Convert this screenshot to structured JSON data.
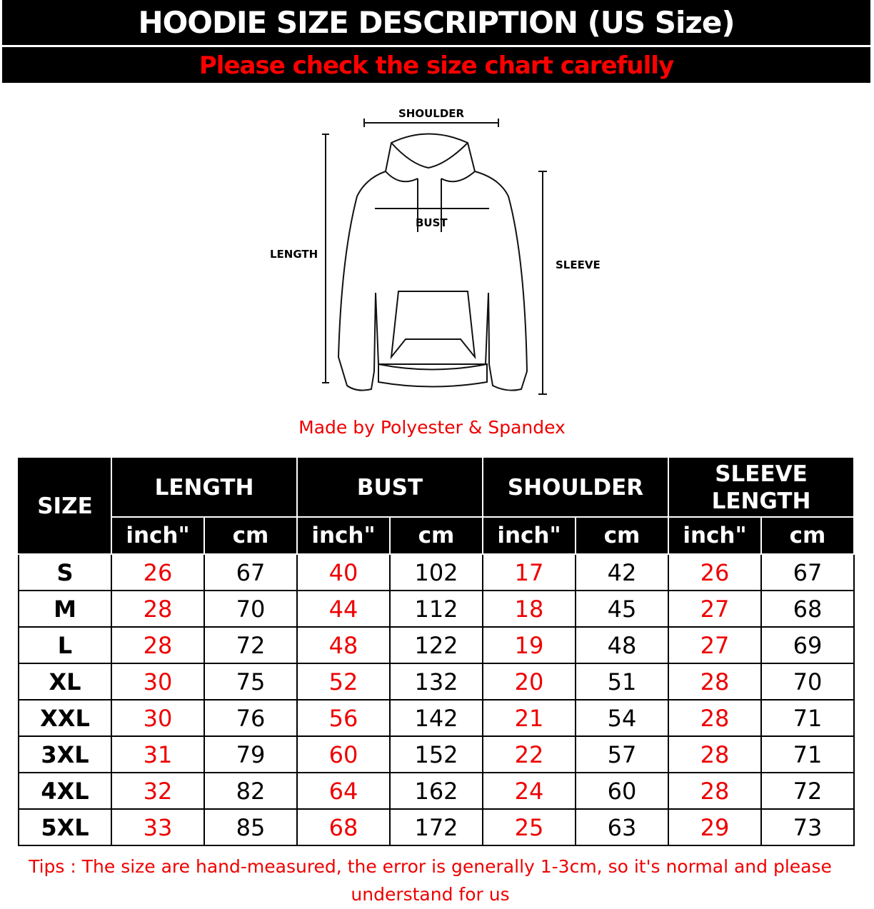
{
  "header": {
    "title": "HOODIE SIZE DESCRIPTION (US Size)",
    "subtitle": "Please check the size chart carefully"
  },
  "diagram": {
    "shoulder": "SHOULDER",
    "bust": "BUST",
    "length": "LENGTH",
    "sleeve": "SLEEVE"
  },
  "material": "Made by Polyester & Spandex",
  "table": {
    "size_header": "SIZE",
    "groups": [
      "LENGTH",
      "BUST",
      "SHOULDER",
      "SLEEVE LENGTH"
    ],
    "units": [
      "inch\"",
      "cm",
      "inch\"",
      "cm",
      "inch\"",
      "cm",
      "inch\"",
      "cm"
    ],
    "rows": [
      [
        "S",
        "26",
        "67",
        "40",
        "102",
        "17",
        "42",
        "26",
        "67"
      ],
      [
        "M",
        "28",
        "70",
        "44",
        "112",
        "18",
        "45",
        "27",
        "68"
      ],
      [
        "L",
        "28",
        "72",
        "48",
        "122",
        "19",
        "48",
        "27",
        "69"
      ],
      [
        "XL",
        "30",
        "75",
        "52",
        "132",
        "20",
        "51",
        "28",
        "70"
      ],
      [
        "XXL",
        "30",
        "76",
        "56",
        "142",
        "21",
        "54",
        "28",
        "71"
      ],
      [
        "3XL",
        "31",
        "79",
        "60",
        "152",
        "22",
        "57",
        "28",
        "71"
      ],
      [
        "4XL",
        "32",
        "82",
        "64",
        "162",
        "24",
        "60",
        "28",
        "72"
      ],
      [
        "5XL",
        "33",
        "85",
        "68",
        "172",
        "25",
        "63",
        "29",
        "73"
      ]
    ]
  },
  "tips": "Tips : The size are hand-measured, the error is generally 1-3cm, so it's normal and please understand for us",
  "colors": {
    "accent": "#ff0000",
    "header_bg": "#000000"
  }
}
